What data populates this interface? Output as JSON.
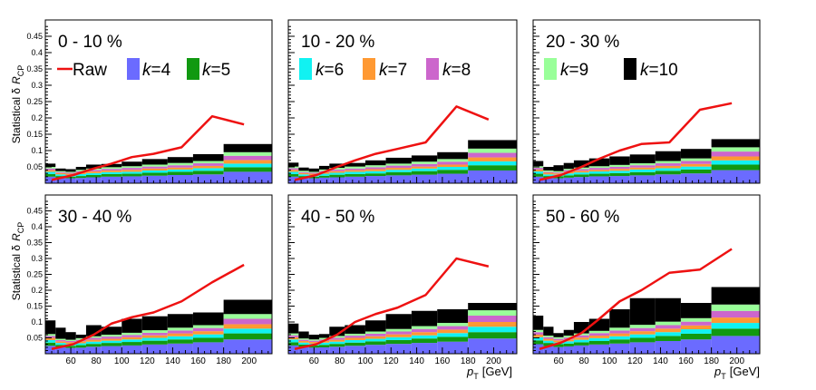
{
  "figure": {
    "y_axis_title_prefix": "Statistical δ",
    "y_axis_title_var": "R",
    "y_axis_title_sub": "CP",
    "x_axis_title_var": "p",
    "x_axis_title_sub": "T",
    "x_axis_title_unit": "[GeV]"
  },
  "legend": {
    "raw_label": "Raw",
    "k_prefix": "k",
    "k_values": [
      "4",
      "5",
      "6",
      "7",
      "8",
      "9",
      "10"
    ]
  },
  "colors": {
    "raw": "#ee1111",
    "k4": "#6b6bff",
    "k5": "#119911",
    "k6": "#11f2f2",
    "k7": "#ff9933",
    "k8": "#cc66cc",
    "k9": "#99ff99",
    "k10": "#000000"
  },
  "chart_data": {
    "type": "area",
    "stacked": true,
    "x_unit": "GeV",
    "xlim": [
      40,
      218
    ],
    "ylim": [
      0,
      0.5
    ],
    "x_ticks": [
      60,
      80,
      100,
      120,
      140,
      160,
      180,
      200
    ],
    "y_ticks": [
      0.05,
      0.1,
      0.15,
      0.2,
      0.25,
      0.3,
      0.35,
      0.4,
      0.45
    ],
    "bin_edges": [
      40,
      48,
      56,
      64,
      72,
      84,
      100,
      116,
      136,
      156,
      180,
      218
    ],
    "series_names": [
      "k=4",
      "k=5",
      "k=6",
      "k=7",
      "k=8",
      "k=9",
      "k=10"
    ],
    "raw_x": [
      45,
      62,
      78,
      92,
      108,
      125,
      147,
      171,
      196
    ],
    "panels": [
      {
        "label": "0 - 10 %",
        "stack_tops": [
          [
            0.02,
            0.028,
            0.035,
            0.04,
            0.045,
            0.05,
            0.06
          ],
          [
            0.016,
            0.022,
            0.027,
            0.031,
            0.034,
            0.037,
            0.045
          ],
          [
            0.015,
            0.02,
            0.025,
            0.029,
            0.032,
            0.035,
            0.043
          ],
          [
            0.016,
            0.022,
            0.028,
            0.033,
            0.037,
            0.041,
            0.05
          ],
          [
            0.018,
            0.025,
            0.031,
            0.036,
            0.041,
            0.045,
            0.057
          ],
          [
            0.02,
            0.028,
            0.034,
            0.039,
            0.044,
            0.049,
            0.059
          ],
          [
            0.021,
            0.029,
            0.035,
            0.041,
            0.047,
            0.052,
            0.066
          ],
          [
            0.023,
            0.032,
            0.039,
            0.045,
            0.051,
            0.057,
            0.074
          ],
          [
            0.025,
            0.035,
            0.042,
            0.048,
            0.055,
            0.062,
            0.08
          ],
          [
            0.027,
            0.038,
            0.046,
            0.053,
            0.061,
            0.068,
            0.089
          ],
          [
            0.035,
            0.049,
            0.06,
            0.071,
            0.084,
            0.095,
            0.12
          ]
        ],
        "raw_y": [
          0.01,
          0.025,
          0.045,
          0.06,
          0.08,
          0.09,
          0.11,
          0.205,
          0.18
        ]
      },
      {
        "label": "10 - 20 %",
        "stack_tops": [
          [
            0.02,
            0.028,
            0.035,
            0.041,
            0.046,
            0.051,
            0.063
          ],
          [
            0.016,
            0.022,
            0.027,
            0.031,
            0.034,
            0.038,
            0.048
          ],
          [
            0.015,
            0.02,
            0.025,
            0.029,
            0.032,
            0.035,
            0.045
          ],
          [
            0.017,
            0.023,
            0.029,
            0.034,
            0.038,
            0.042,
            0.053
          ],
          [
            0.018,
            0.026,
            0.032,
            0.037,
            0.042,
            0.047,
            0.06
          ],
          [
            0.02,
            0.028,
            0.035,
            0.04,
            0.045,
            0.051,
            0.062
          ],
          [
            0.022,
            0.03,
            0.037,
            0.043,
            0.049,
            0.055,
            0.07
          ],
          [
            0.024,
            0.034,
            0.041,
            0.047,
            0.054,
            0.06,
            0.078
          ],
          [
            0.026,
            0.037,
            0.045,
            0.051,
            0.059,
            0.066,
            0.085
          ],
          [
            0.029,
            0.041,
            0.05,
            0.057,
            0.066,
            0.074,
            0.095
          ],
          [
            0.039,
            0.055,
            0.067,
            0.079,
            0.093,
            0.106,
            0.132
          ]
        ],
        "raw_y": [
          0.01,
          0.025,
          0.05,
          0.07,
          0.09,
          0.105,
          0.125,
          0.235,
          0.195
        ]
      },
      {
        "label": "20 - 30 %",
        "stack_tops": [
          [
            0.02,
            0.029,
            0.036,
            0.042,
            0.047,
            0.052,
            0.068
          ],
          [
            0.016,
            0.022,
            0.027,
            0.032,
            0.035,
            0.039,
            0.05
          ],
          [
            0.015,
            0.021,
            0.026,
            0.03,
            0.033,
            0.037,
            0.055
          ],
          [
            0.017,
            0.024,
            0.03,
            0.035,
            0.04,
            0.044,
            0.062
          ],
          [
            0.019,
            0.027,
            0.033,
            0.038,
            0.043,
            0.048,
            0.07
          ],
          [
            0.021,
            0.029,
            0.036,
            0.041,
            0.047,
            0.052,
            0.076
          ],
          [
            0.022,
            0.031,
            0.038,
            0.044,
            0.05,
            0.056,
            0.082
          ],
          [
            0.024,
            0.034,
            0.042,
            0.048,
            0.055,
            0.061,
            0.088
          ],
          [
            0.027,
            0.038,
            0.046,
            0.053,
            0.061,
            0.068,
            0.098
          ],
          [
            0.03,
            0.042,
            0.051,
            0.059,
            0.068,
            0.076,
            0.105
          ],
          [
            0.04,
            0.057,
            0.07,
            0.082,
            0.097,
            0.11,
            0.135
          ]
        ],
        "raw_y": [
          0.01,
          0.025,
          0.05,
          0.075,
          0.1,
          0.12,
          0.125,
          0.225,
          0.245
        ]
      },
      {
        "label": "30 - 40 %",
        "stack_tops": [
          [
            0.025,
            0.035,
            0.043,
            0.05,
            0.056,
            0.062,
            0.105
          ],
          [
            0.02,
            0.028,
            0.034,
            0.039,
            0.043,
            0.047,
            0.082
          ],
          [
            0.018,
            0.025,
            0.031,
            0.036,
            0.04,
            0.044,
            0.068
          ],
          [
            0.019,
            0.027,
            0.033,
            0.039,
            0.044,
            0.049,
            0.06
          ],
          [
            0.022,
            0.031,
            0.038,
            0.044,
            0.05,
            0.055,
            0.09
          ],
          [
            0.024,
            0.034,
            0.041,
            0.047,
            0.054,
            0.06,
            0.085
          ],
          [
            0.026,
            0.037,
            0.045,
            0.052,
            0.059,
            0.066,
            0.11
          ],
          [
            0.029,
            0.041,
            0.05,
            0.058,
            0.066,
            0.074,
            0.118
          ],
          [
            0.032,
            0.045,
            0.055,
            0.064,
            0.073,
            0.082,
            0.125
          ],
          [
            0.036,
            0.05,
            0.061,
            0.071,
            0.081,
            0.09,
            0.13
          ],
          [
            0.045,
            0.064,
            0.079,
            0.093,
            0.11,
            0.125,
            0.17
          ]
        ],
        "raw_y": [
          0.015,
          0.03,
          0.06,
          0.095,
          0.115,
          0.13,
          0.165,
          0.225,
          0.28
        ]
      },
      {
        "label": "40 - 50 %",
        "stack_tops": [
          [
            0.026,
            0.036,
            0.045,
            0.052,
            0.058,
            0.064,
            0.095
          ],
          [
            0.021,
            0.029,
            0.035,
            0.04,
            0.044,
            0.048,
            0.07
          ],
          [
            0.019,
            0.026,
            0.032,
            0.037,
            0.041,
            0.045,
            0.06
          ],
          [
            0.02,
            0.028,
            0.035,
            0.04,
            0.045,
            0.05,
            0.062
          ],
          [
            0.022,
            0.031,
            0.038,
            0.044,
            0.05,
            0.056,
            0.085
          ],
          [
            0.025,
            0.035,
            0.043,
            0.05,
            0.057,
            0.063,
            0.09
          ],
          [
            0.028,
            0.039,
            0.047,
            0.055,
            0.063,
            0.07,
            0.105
          ],
          [
            0.031,
            0.043,
            0.052,
            0.061,
            0.07,
            0.078,
            0.125
          ],
          [
            0.034,
            0.048,
            0.058,
            0.068,
            0.078,
            0.087,
            0.135
          ],
          [
            0.038,
            0.053,
            0.065,
            0.076,
            0.087,
            0.097,
            0.14
          ],
          [
            0.048,
            0.068,
            0.085,
            0.1,
            0.12,
            0.137,
            0.16
          ]
        ],
        "raw_y": [
          0.015,
          0.03,
          0.06,
          0.1,
          0.125,
          0.145,
          0.185,
          0.3,
          0.275
        ]
      },
      {
        "label": "50 - 60 %",
        "stack_tops": [
          [
            0.03,
            0.042,
            0.052,
            0.06,
            0.068,
            0.075,
            0.12
          ],
          [
            0.024,
            0.034,
            0.041,
            0.047,
            0.052,
            0.057,
            0.085
          ],
          [
            0.021,
            0.03,
            0.036,
            0.042,
            0.047,
            0.052,
            0.065
          ],
          [
            0.023,
            0.032,
            0.039,
            0.045,
            0.051,
            0.057,
            0.075
          ],
          [
            0.026,
            0.036,
            0.044,
            0.051,
            0.058,
            0.064,
            0.1
          ],
          [
            0.029,
            0.04,
            0.049,
            0.057,
            0.065,
            0.072,
            0.11
          ],
          [
            0.032,
            0.045,
            0.055,
            0.064,
            0.073,
            0.082,
            0.14
          ],
          [
            0.036,
            0.05,
            0.061,
            0.071,
            0.081,
            0.091,
            0.175
          ],
          [
            0.04,
            0.056,
            0.068,
            0.079,
            0.09,
            0.101,
            0.175
          ],
          [
            0.045,
            0.063,
            0.077,
            0.089,
            0.101,
            0.112,
            0.16
          ],
          [
            0.056,
            0.079,
            0.097,
            0.114,
            0.135,
            0.155,
            0.21
          ]
        ],
        "raw_y": [
          0.015,
          0.035,
          0.065,
          0.11,
          0.165,
          0.2,
          0.255,
          0.265,
          0.33
        ]
      }
    ]
  }
}
